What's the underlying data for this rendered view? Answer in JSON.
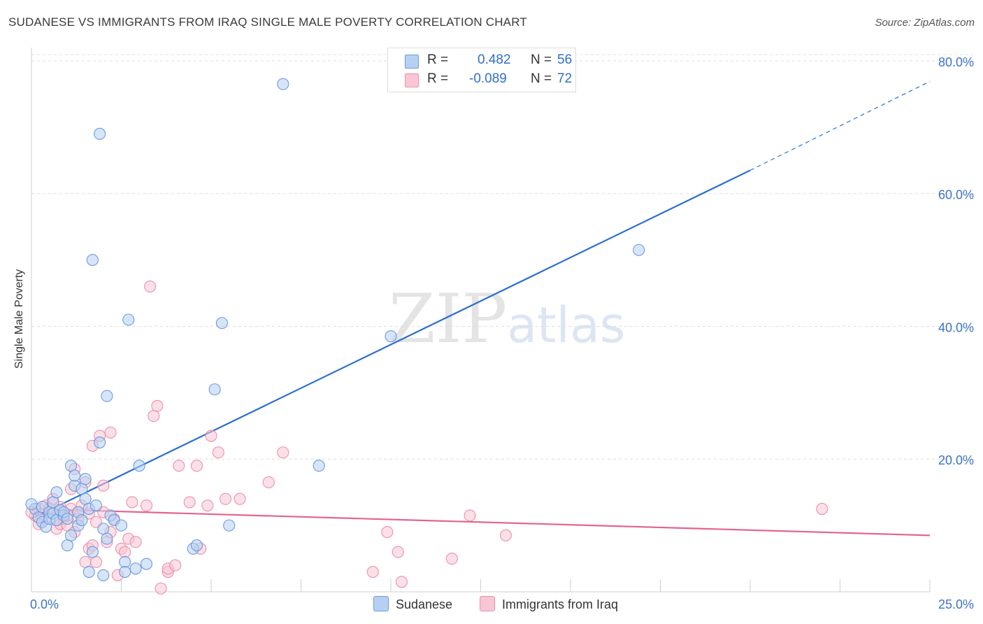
{
  "header": {
    "title": "SUDANESE VS IMMIGRANTS FROM IRAQ SINGLE MALE POVERTY CORRELATION CHART",
    "source": "Source: ZipAtlas.com"
  },
  "watermark": {
    "zip": "ZIP",
    "atlas": "atlas"
  },
  "legend": {
    "series": [
      {
        "r_label": "R =",
        "r_value": "0.482",
        "n_label": "N =",
        "n_value": "56"
      },
      {
        "r_label": "R =",
        "r_value": "-0.089",
        "n_label": "N =",
        "n_value": "72"
      }
    ],
    "bottom": [
      "Sudanese",
      "Immigrants from Iraq"
    ]
  },
  "colors": {
    "blue_fill": "#b7d0f2",
    "blue_stroke": "#6a9be0",
    "blue_line": "#2b6fce",
    "pink_fill": "#f8c6d4",
    "pink_stroke": "#ee8fac",
    "pink_line": "#e2648f",
    "grid": "#dddddd",
    "tick_text": "#3b73c9"
  },
  "chart_data": {
    "type": "scatter",
    "title": "SUDANESE VS IMMIGRANTS FROM IRAQ SINGLE MALE POVERTY CORRELATION CHART",
    "xlabel": "",
    "ylabel": "Single Male Poverty",
    "xlim": [
      0,
      25
    ],
    "ylim": [
      0,
      82
    ],
    "x_tick_labels": [
      "0.0%",
      "25.0%"
    ],
    "y_ticks": [
      20,
      40,
      60,
      80
    ],
    "y_tick_labels": [
      "20.0%",
      "40.0%",
      "60.0%",
      "80.0%"
    ],
    "series": [
      {
        "name": "Sudanese",
        "R": 0.482,
        "N": 56,
        "trend": {
          "x0": 0,
          "y0": 11.0,
          "x1": 20.0,
          "y1": 63.5,
          "dash_to_x": 25,
          "dash_to_y": 76.9
        },
        "points": [
          [
            0.1,
            12.5
          ],
          [
            0.2,
            11.2
          ],
          [
            0.3,
            10.5
          ],
          [
            0.3,
            12.8
          ],
          [
            0.4,
            9.8
          ],
          [
            0.5,
            12.0
          ],
          [
            0.5,
            11.0
          ],
          [
            0.6,
            13.5
          ],
          [
            0.6,
            11.8
          ],
          [
            0.7,
            15.0
          ],
          [
            0.7,
            10.8
          ],
          [
            0.8,
            12.3
          ],
          [
            0.9,
            11.5
          ],
          [
            0.9,
            12.0
          ],
          [
            1.0,
            7.0
          ],
          [
            1.0,
            11.0
          ],
          [
            1.1,
            19.0
          ],
          [
            1.1,
            8.5
          ],
          [
            1.2,
            16.0
          ],
          [
            1.2,
            17.5
          ],
          [
            1.3,
            10.0
          ],
          [
            1.3,
            12.0
          ],
          [
            1.4,
            15.5
          ],
          [
            1.4,
            10.8
          ],
          [
            1.5,
            17.0
          ],
          [
            1.5,
            14.0
          ],
          [
            1.6,
            3.0
          ],
          [
            1.6,
            12.5
          ],
          [
            1.7,
            50.0
          ],
          [
            1.7,
            6.0
          ],
          [
            1.8,
            13.0
          ],
          [
            1.9,
            69.0
          ],
          [
            1.9,
            22.5
          ],
          [
            2.0,
            9.5
          ],
          [
            2.0,
            2.5
          ],
          [
            2.1,
            29.5
          ],
          [
            2.1,
            8.0
          ],
          [
            2.2,
            11.5
          ],
          [
            2.3,
            10.8
          ],
          [
            2.5,
            10.0
          ],
          [
            2.6,
            4.5
          ],
          [
            2.6,
            3.0
          ],
          [
            2.7,
            41.0
          ],
          [
            2.9,
            3.5
          ],
          [
            3.0,
            19.0
          ],
          [
            3.2,
            4.2
          ],
          [
            4.5,
            6.5
          ],
          [
            4.6,
            7.0
          ],
          [
            5.1,
            30.5
          ],
          [
            5.3,
            40.5
          ],
          [
            5.5,
            10.0
          ],
          [
            7.0,
            76.5
          ],
          [
            8.0,
            19.0
          ],
          [
            10.0,
            38.5
          ],
          [
            16.9,
            51.5
          ],
          [
            0.0,
            13.2
          ]
        ]
      },
      {
        "name": "Immigrants from Iraq",
        "R": -0.089,
        "N": 72,
        "trend": {
          "x0": 0,
          "y0": 12.5,
          "x1": 25,
          "y1": 8.5
        },
        "points": [
          [
            0.1,
            11.5
          ],
          [
            0.2,
            12.5
          ],
          [
            0.3,
            10.5
          ],
          [
            0.4,
            11.0
          ],
          [
            0.4,
            13.0
          ],
          [
            0.5,
            12.0
          ],
          [
            0.6,
            11.8
          ],
          [
            0.6,
            14.0
          ],
          [
            0.7,
            9.5
          ],
          [
            0.8,
            10.2
          ],
          [
            0.8,
            12.8
          ],
          [
            0.9,
            11.0
          ],
          [
            1.0,
            10.0
          ],
          [
            1.1,
            12.5
          ],
          [
            1.1,
            15.5
          ],
          [
            1.2,
            18.5
          ],
          [
            1.2,
            9.0
          ],
          [
            1.3,
            12.0
          ],
          [
            1.3,
            11.0
          ],
          [
            1.4,
            13.0
          ],
          [
            1.5,
            16.5
          ],
          [
            1.5,
            4.5
          ],
          [
            1.6,
            6.5
          ],
          [
            1.7,
            22.0
          ],
          [
            1.7,
            7.0
          ],
          [
            1.8,
            4.5
          ],
          [
            1.8,
            10.5
          ],
          [
            1.9,
            23.5
          ],
          [
            2.0,
            16.0
          ],
          [
            2.0,
            12.0
          ],
          [
            2.1,
            7.5
          ],
          [
            2.2,
            24.0
          ],
          [
            2.2,
            9.0
          ],
          [
            2.3,
            11.0
          ],
          [
            2.4,
            2.5
          ],
          [
            2.5,
            6.5
          ],
          [
            2.6,
            6.0
          ],
          [
            2.7,
            8.0
          ],
          [
            2.8,
            13.5
          ],
          [
            2.9,
            7.5
          ],
          [
            3.2,
            13.0
          ],
          [
            3.3,
            46.0
          ],
          [
            3.4,
            26.5
          ],
          [
            3.5,
            28.0
          ],
          [
            3.6,
            0.5
          ],
          [
            3.8,
            3.0
          ],
          [
            3.8,
            3.5
          ],
          [
            4.0,
            4.0
          ],
          [
            4.1,
            19.0
          ],
          [
            4.4,
            13.5
          ],
          [
            4.6,
            19.0
          ],
          [
            4.7,
            6.5
          ],
          [
            4.9,
            13.0
          ],
          [
            5.0,
            23.5
          ],
          [
            5.2,
            21.0
          ],
          [
            5.4,
            14.0
          ],
          [
            5.8,
            14.0
          ],
          [
            6.6,
            16.5
          ],
          [
            7.0,
            21.0
          ],
          [
            9.5,
            3.0
          ],
          [
            9.9,
            9.0
          ],
          [
            10.2,
            6.0
          ],
          [
            10.3,
            1.5
          ],
          [
            11.7,
            5.0
          ],
          [
            12.2,
            11.5
          ],
          [
            13.2,
            8.5
          ],
          [
            22.0,
            12.5
          ],
          [
            0.0,
            12.0
          ],
          [
            0.2,
            10.2
          ],
          [
            0.5,
            12.5
          ],
          [
            1.0,
            11.5
          ],
          [
            1.6,
            11.8
          ]
        ]
      }
    ]
  }
}
